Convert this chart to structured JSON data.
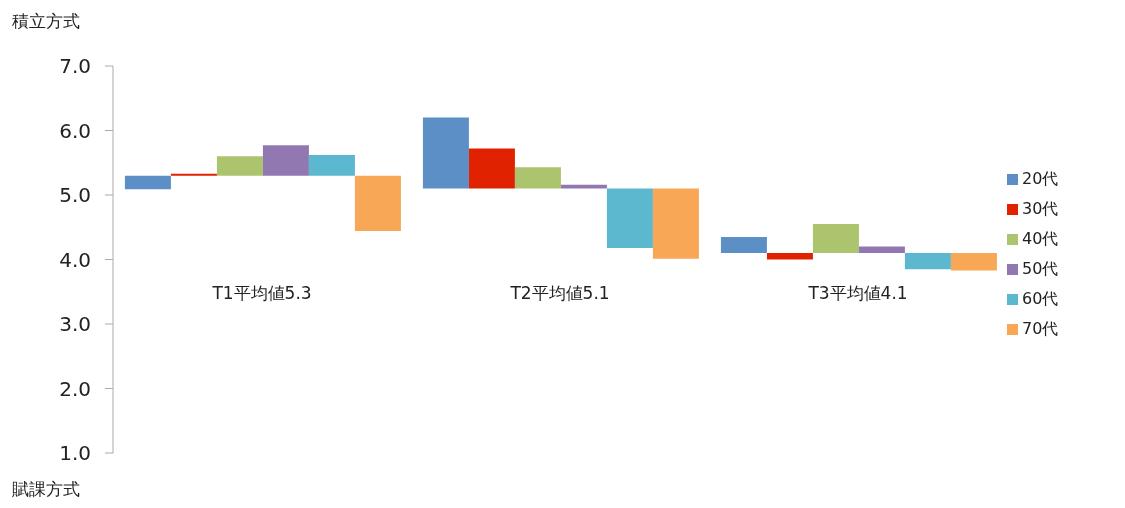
{
  "chart_data": {
    "type": "bar",
    "ylabel": "積立方式",
    "categories": [
      "T1平均値5.3",
      "T2平均値5.1",
      "T3平均値4.1"
    ],
    "series": [
      {
        "name": "20代",
        "color": "#5b8fc6",
        "base": [
          5.3,
          5.1,
          4.1
        ],
        "values": [
          -0.21,
          1.1,
          0.25
        ]
      },
      {
        "name": "30代",
        "color": "#e02200",
        "base": [
          5.3,
          5.1,
          4.1
        ],
        "values": [
          0.03,
          0.62,
          -0.1
        ]
      },
      {
        "name": "40代",
        "color": "#acc46e",
        "base": [
          5.3,
          5.1,
          4.1
        ],
        "values": [
          0.3,
          0.33,
          0.45
        ]
      },
      {
        "name": "50代",
        "color": "#9178b0",
        "base": [
          5.3,
          5.1,
          4.1
        ],
        "values": [
          0.47,
          0.06,
          0.1
        ]
      },
      {
        "name": "60代",
        "color": "#5bb8cf",
        "base": [
          5.3,
          5.1,
          4.1
        ],
        "values": [
          0.32,
          -0.92,
          -0.25
        ]
      },
      {
        "name": "70代",
        "color": "#f8a757",
        "base": [
          5.3,
          5.1,
          4.1
        ],
        "values": [
          -0.86,
          -1.09,
          -0.27
        ]
      }
    ],
    "ylim": [
      1,
      7
    ],
    "yticks": [
      {
        "value": 1,
        "label": "1.0"
      },
      {
        "value": 2,
        "label": "2.0"
      },
      {
        "value": 3,
        "label": "3.0"
      },
      {
        "value": 4,
        "label": "4.0"
      },
      {
        "value": 5,
        "label": "5.0"
      },
      {
        "value": 6,
        "label": "6.0"
      },
      {
        "value": 7,
        "label": "7.0"
      }
    ],
    "annotations": [
      "賦課方式"
    ],
    "grid": false,
    "legend": "right"
  }
}
